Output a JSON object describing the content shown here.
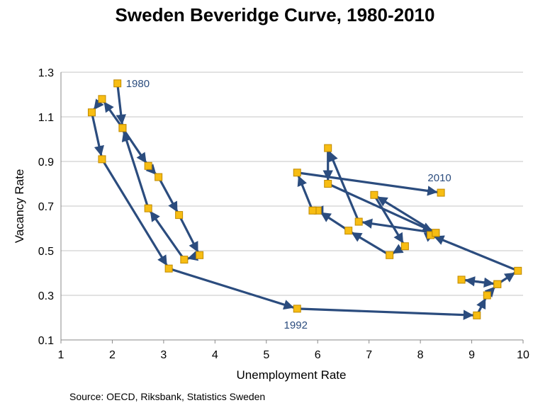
{
  "chart_data": {
    "type": "scatter",
    "title": "Sweden Beveridge Curve, 1980-2010",
    "xlabel": "Unemployment Rate",
    "ylabel": "Vacancy Rate",
    "xlim": [
      1,
      10
    ],
    "ylim": [
      0.1,
      1.3
    ],
    "x_ticks": [
      "1",
      "2",
      "3",
      "4",
      "5",
      "6",
      "7",
      "8",
      "9",
      "10"
    ],
    "y_ticks": [
      "0.1",
      "0.3",
      "0.5",
      "0.7",
      "0.9",
      "1.1",
      "1.3"
    ],
    "grid": "horizontal",
    "connected": true,
    "series": [
      {
        "points": [
          {
            "x": 2.1,
            "y": 1.25
          },
          {
            "x": 2.2,
            "y": 1.05
          },
          {
            "x": 2.7,
            "y": 0.88
          },
          {
            "x": 2.9,
            "y": 0.83
          },
          {
            "x": 3.3,
            "y": 0.66
          },
          {
            "x": 3.7,
            "y": 0.48
          },
          {
            "x": 3.4,
            "y": 0.46
          },
          {
            "x": 2.7,
            "y": 0.69
          },
          {
            "x": 2.2,
            "y": 1.05
          },
          {
            "x": 1.8,
            "y": 1.18
          },
          {
            "x": 1.6,
            "y": 1.12
          },
          {
            "x": 1.8,
            "y": 0.91
          },
          {
            "x": 3.1,
            "y": 0.42
          },
          {
            "x": 5.6,
            "y": 0.24
          },
          {
            "x": 9.1,
            "y": 0.21
          },
          {
            "x": 9.3,
            "y": 0.3
          },
          {
            "x": 9.5,
            "y": 0.35
          },
          {
            "x": 8.8,
            "y": 0.37
          },
          {
            "x": 9.5,
            "y": 0.35
          },
          {
            "x": 9.9,
            "y": 0.41
          },
          {
            "x": 8.2,
            "y": 0.57
          },
          {
            "x": 8.3,
            "y": 0.58
          },
          {
            "x": 6.8,
            "y": 0.63
          },
          {
            "x": 6.2,
            "y": 0.96
          },
          {
            "x": 6.2,
            "y": 0.8
          },
          {
            "x": 8.3,
            "y": 0.58
          },
          {
            "x": 7.1,
            "y": 0.75
          },
          {
            "x": 7.7,
            "y": 0.52
          },
          {
            "x": 7.4,
            "y": 0.48
          },
          {
            "x": 6.6,
            "y": 0.59
          },
          {
            "x": 6.0,
            "y": 0.68
          },
          {
            "x": 5.9,
            "y": 0.68
          },
          {
            "x": 5.6,
            "y": 0.85
          },
          {
            "x": 8.4,
            "y": 0.76
          }
        ]
      }
    ],
    "point_labels": [
      {
        "text": "1980",
        "x": 2.1,
        "y": 1.25
      },
      {
        "text": "1992",
        "x": 5.6,
        "y": 0.24
      },
      {
        "text": "2010",
        "x": 8.4,
        "y": 0.76
      }
    ],
    "colors": {
      "line": "#2b4c7e",
      "marker_fill": "#f7bd13",
      "marker_edge": "#c08a00",
      "grid": "#c6c6c6"
    }
  },
  "source": "Source: OECD, Riksbank, Statistics Sweden"
}
